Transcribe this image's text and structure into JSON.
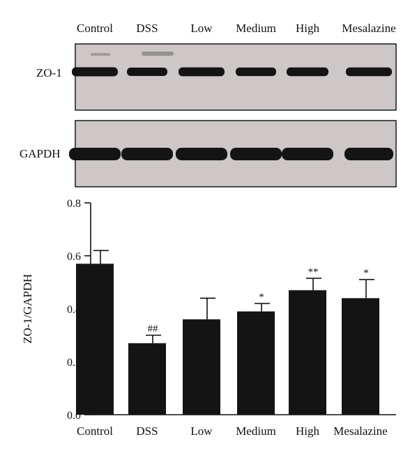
{
  "blot": {
    "lane_labels": [
      "Control",
      "DSS",
      "Low",
      "Medium",
      "High",
      "Mesalazine"
    ],
    "rows": [
      {
        "label": "ZO-1",
        "band_intensity": [
          1.0,
          0.75,
          0.95,
          0.8,
          0.85,
          0.9
        ]
      },
      {
        "label": "GAPDH",
        "band_intensity": [
          1.0,
          1.0,
          1.0,
          1.0,
          1.0,
          1.0
        ]
      }
    ],
    "band_color": "#141414",
    "membrane_color": "#cdc7c7"
  },
  "chart_data": {
    "type": "bar",
    "categories": [
      "Control",
      "DSS",
      "Low",
      "Medium",
      "High",
      "Mesalazine"
    ],
    "values": [
      0.57,
      0.27,
      0.36,
      0.39,
      0.47,
      0.44
    ],
    "errors": [
      0.05,
      0.03,
      0.08,
      0.03,
      0.045,
      0.07
    ],
    "significance": [
      "",
      "##",
      "",
      "*",
      "**",
      "*"
    ],
    "ylabel": "ZO-1/GAPDH",
    "xlabel": "",
    "ylim": [
      0,
      0.8
    ],
    "yticks": [
      "0.0",
      "0.2",
      "0.4",
      "0.6",
      "0.8"
    ],
    "grid": false,
    "bar_color": "#141414"
  }
}
